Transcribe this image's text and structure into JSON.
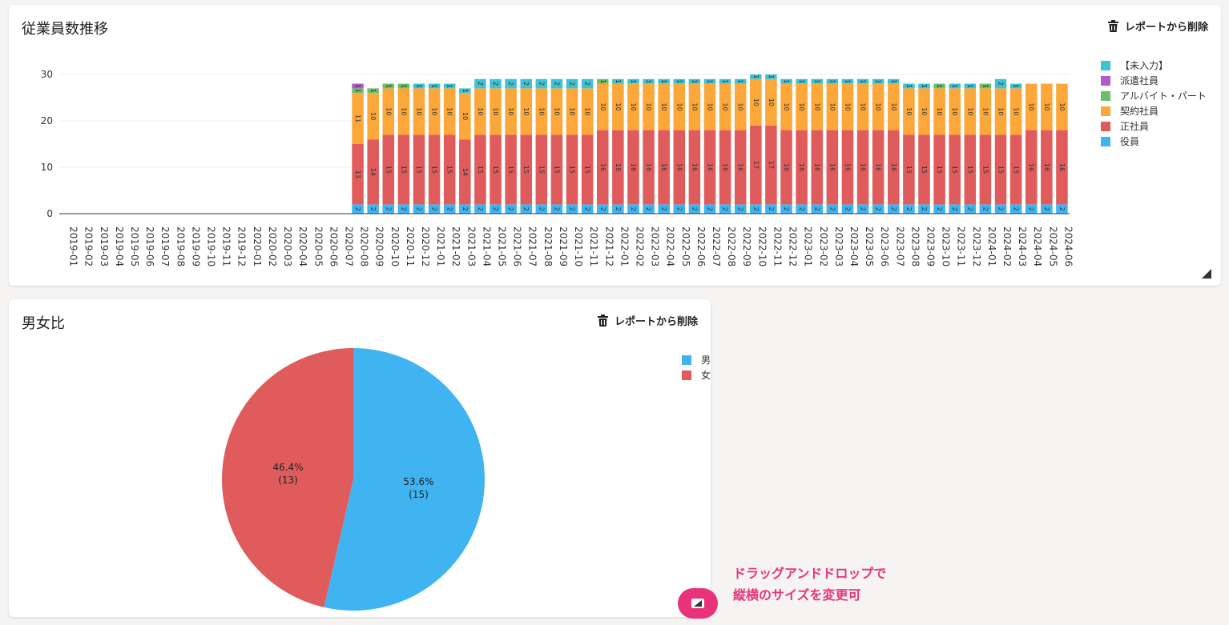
{
  "remove_label": "レポートから削除",
  "chart1": {
    "title": "従業員数推移",
    "legend": [
      {
        "name": "【未入力】",
        "color": "#3ec2d6"
      },
      {
        "name": "派遣社員",
        "color": "#b05cc9"
      },
      {
        "name": "アルバイト・パート",
        "color": "#6cbf6a"
      },
      {
        "name": "契約社員",
        "color": "#fba73a"
      },
      {
        "name": "正社員",
        "color": "#e05c5c"
      },
      {
        "name": "役員",
        "color": "#3fb4f0"
      }
    ]
  },
  "chart2": {
    "title": "男女比",
    "legend": [
      {
        "name": "男",
        "color": "#3fb4f0"
      },
      {
        "name": "女",
        "color": "#e05c5c"
      }
    ]
  },
  "annotation": {
    "line1": "ドラッグアンドドロップで",
    "line2": "縦横のサイズを変更可"
  },
  "chart_data": [
    {
      "type": "bar",
      "stacked": true,
      "ylim": [
        0,
        30
      ],
      "yticks": [
        0,
        10,
        20,
        30
      ],
      "grid": true,
      "legend_position": "right",
      "categories": [
        "2019-01",
        "2019-02",
        "2019-03",
        "2019-04",
        "2019-05",
        "2019-06",
        "2019-07",
        "2019-08",
        "2019-09",
        "2019-10",
        "2019-11",
        "2019-12",
        "2020-01",
        "2020-02",
        "2020-03",
        "2020-04",
        "2020-05",
        "2020-06",
        "2020-07",
        "2020-08",
        "2020-09",
        "2020-10",
        "2020-11",
        "2020-12",
        "2021-01",
        "2021-02",
        "2021-03",
        "2021-04",
        "2021-05",
        "2021-06",
        "2021-07",
        "2021-08",
        "2021-09",
        "2021-10",
        "2021-11",
        "2021-12",
        "2022-01",
        "2022-02",
        "2022-03",
        "2022-04",
        "2022-05",
        "2022-06",
        "2022-07",
        "2022-08",
        "2022-09",
        "2022-10",
        "2022-11",
        "2022-12",
        "2023-01",
        "2023-02",
        "2023-03",
        "2023-04",
        "2023-05",
        "2023-06",
        "2023-07",
        "2023-08",
        "2023-09",
        "2023-10",
        "2023-11",
        "2023-12",
        "2024-01",
        "2024-02",
        "2024-03",
        "2024-04",
        "2024-05",
        "2024-06"
      ],
      "series": [
        {
          "name": "役員",
          "color": "#3fb4f0",
          "values": [
            0,
            0,
            0,
            0,
            0,
            0,
            0,
            0,
            0,
            0,
            0,
            0,
            0,
            0,
            0,
            0,
            0,
            0,
            0,
            2,
            2,
            2,
            2,
            2,
            2,
            2,
            2,
            2,
            2,
            2,
            2,
            2,
            2,
            2,
            2,
            2,
            2,
            2,
            2,
            2,
            2,
            2,
            2,
            2,
            2,
            2,
            2,
            2,
            2,
            2,
            2,
            2,
            2,
            2,
            2,
            2,
            2,
            2,
            2,
            2,
            2,
            2,
            2,
            2,
            2,
            2
          ]
        },
        {
          "name": "正社員",
          "color": "#e05c5c",
          "values": [
            0,
            0,
            0,
            0,
            0,
            0,
            0,
            0,
            0,
            0,
            0,
            0,
            0,
            0,
            0,
            0,
            0,
            0,
            0,
            13,
            14,
            15,
            15,
            15,
            15,
            15,
            14,
            15,
            15,
            15,
            15,
            15,
            15,
            15,
            15,
            16,
            16,
            16,
            16,
            16,
            16,
            16,
            16,
            16,
            16,
            17,
            17,
            16,
            16,
            16,
            16,
            16,
            16,
            16,
            16,
            15,
            15,
            15,
            15,
            15,
            15,
            15,
            15,
            16,
            16,
            16
          ]
        },
        {
          "name": "契約社員",
          "color": "#fba73a",
          "values": [
            0,
            0,
            0,
            0,
            0,
            0,
            0,
            0,
            0,
            0,
            0,
            0,
            0,
            0,
            0,
            0,
            0,
            0,
            0,
            11,
            10,
            10,
            10,
            10,
            10,
            10,
            10,
            10,
            10,
            10,
            10,
            10,
            10,
            10,
            10,
            10,
            10,
            10,
            10,
            10,
            10,
            10,
            10,
            10,
            10,
            10,
            10,
            10,
            10,
            10,
            10,
            10,
            10,
            10,
            10,
            10,
            10,
            10,
            10,
            10,
            10,
            10,
            10,
            10,
            10,
            10
          ]
        },
        {
          "name": "アルバイト・パート",
          "color": "#6cbf6a",
          "values": [
            0,
            0,
            0,
            0,
            0,
            0,
            0,
            0,
            0,
            0,
            0,
            0,
            0,
            0,
            0,
            0,
            0,
            0,
            0,
            1,
            1,
            1,
            1,
            0,
            0,
            0,
            0,
            0,
            0,
            0,
            0,
            0,
            0,
            0,
            0,
            1,
            0,
            0,
            0,
            0,
            0,
            0,
            0,
            0,
            0,
            0,
            0,
            0,
            0,
            0,
            0,
            0,
            0,
            0,
            0,
            0,
            0,
            1,
            0,
            0,
            1,
            0,
            0,
            0,
            0,
            0
          ]
        },
        {
          "name": "派遣社員",
          "color": "#b05cc9",
          "values": [
            0,
            0,
            0,
            0,
            0,
            0,
            0,
            0,
            0,
            0,
            0,
            0,
            0,
            0,
            0,
            0,
            0,
            0,
            0,
            1,
            0,
            0,
            0,
            0,
            0,
            0,
            0,
            0,
            0,
            0,
            0,
            0,
            0,
            0,
            0,
            0,
            0,
            0,
            0,
            0,
            0,
            0,
            0,
            0,
            0,
            0,
            0,
            0,
            0,
            0,
            0,
            0,
            0,
            0,
            0,
            0,
            0,
            0,
            0,
            0,
            0,
            0,
            0,
            0,
            0,
            0
          ]
        },
        {
          "name": "【未入力】",
          "color": "#3ec2d6",
          "values": [
            0,
            0,
            0,
            0,
            0,
            0,
            0,
            0,
            0,
            0,
            0,
            0,
            0,
            0,
            0,
            0,
            0,
            0,
            0,
            0,
            0,
            0,
            0,
            1,
            1,
            1,
            1,
            2,
            2,
            2,
            2,
            2,
            2,
            2,
            2,
            0,
            1,
            1,
            1,
            1,
            1,
            1,
            1,
            1,
            1,
            1,
            1,
            1,
            1,
            1,
            1,
            1,
            1,
            1,
            1,
            1,
            1,
            0,
            1,
            1,
            0,
            2,
            1,
            0,
            0,
            0
          ]
        }
      ]
    },
    {
      "type": "pie",
      "legend_position": "right",
      "slices": [
        {
          "name": "男",
          "value": 15,
          "percent": "53.6%",
          "color": "#3fb4f0"
        },
        {
          "name": "女",
          "value": 13,
          "percent": "46.4%",
          "color": "#e05c5c"
        }
      ]
    }
  ]
}
